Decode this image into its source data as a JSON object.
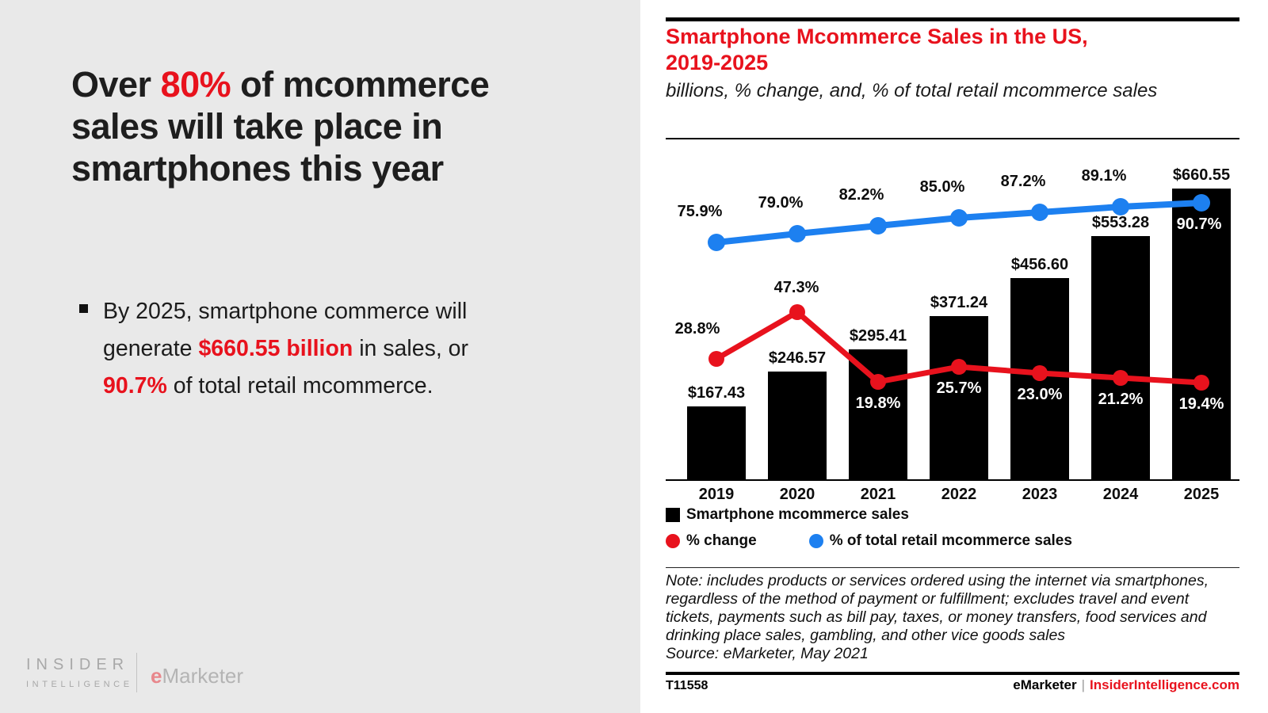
{
  "slide": {
    "headline_segments": [
      {
        "text": "Over ",
        "highlight": false
      },
      {
        "text": "80%",
        "highlight": true
      },
      {
        "text": " of mcommerce sales will take place in smartphones this year",
        "highlight": false
      }
    ],
    "bullet_segments": [
      {
        "text": "By 2025, smartphone commerce will generate ",
        "highlight": false
      },
      {
        "text": "$660.55 billion",
        "highlight": true
      },
      {
        "text": " in sales, or ",
        "highlight": false
      },
      {
        "text": "90.7%",
        "highlight": true
      },
      {
        "text": " of total retail mcommerce.",
        "highlight": false
      }
    ],
    "logos": {
      "insider_line1": "INSIDER",
      "insider_line2": "INTELLIGENCE",
      "emarketer_e": "e",
      "emarketer_rest": "Marketer"
    }
  },
  "chart_data": {
    "type": "bar+line",
    "title": "Smartphone Mcommerce Sales in the US,\n2019-2025",
    "subtitle": "billions, % change, and, % of total retail mcommerce sales",
    "categories": [
      "2019",
      "2020",
      "2021",
      "2022",
      "2023",
      "2024",
      "2025"
    ],
    "series": [
      {
        "name": "Smartphone mcommerce sales",
        "type": "bar",
        "color": "#000000",
        "unit": "billions of US dollars",
        "values": [
          167.43,
          246.57,
          295.41,
          371.24,
          456.6,
          553.28,
          660.55
        ],
        "labels": [
          "$167.43",
          "$246.57",
          "$295.41",
          "$371.24",
          "$456.60",
          "$553.28",
          "$660.55"
        ]
      },
      {
        "name": "% change",
        "type": "line",
        "color": "#e8121d",
        "values": [
          28.8,
          47.3,
          19.8,
          25.7,
          23.0,
          21.2,
          19.4
        ],
        "labels": [
          "28.8%",
          "47.3%",
          "19.8%",
          "25.7%",
          "23.0%",
          "21.2%",
          "19.4%"
        ]
      },
      {
        "name": "% of total retail mcommerce sales",
        "type": "line",
        "color": "#1d80f0",
        "values": [
          75.9,
          79.0,
          82.2,
          85.0,
          87.2,
          89.1,
          90.7
        ],
        "labels": [
          "75.9%",
          "79.0%",
          "82.2%",
          "85.0%",
          "87.2%",
          "89.1%",
          "90.7%"
        ]
      }
    ],
    "legend_position": "bottom-left",
    "gridlines": false,
    "axes_shown": "x only, no y-axis scale",
    "note": "Note: includes products or services ordered using the internet via smartphones, regardless of the method of payment or fulfillment; excludes travel and event tickets, payments such as bill pay, taxes, or money transfers, food services and drinking place sales, gambling, and other vice goods sales",
    "source": "Source: eMarketer, May 2021",
    "footer_id": "T11558",
    "footer_brand": "eMarketer",
    "footer_sep": "|",
    "footer_site": "InsiderIntelligence.com"
  },
  "colors": {
    "accent_red": "#e8121d",
    "line_blue": "#1d80f0",
    "bar_black": "#000000",
    "panel_gray": "#e9e9e9"
  }
}
